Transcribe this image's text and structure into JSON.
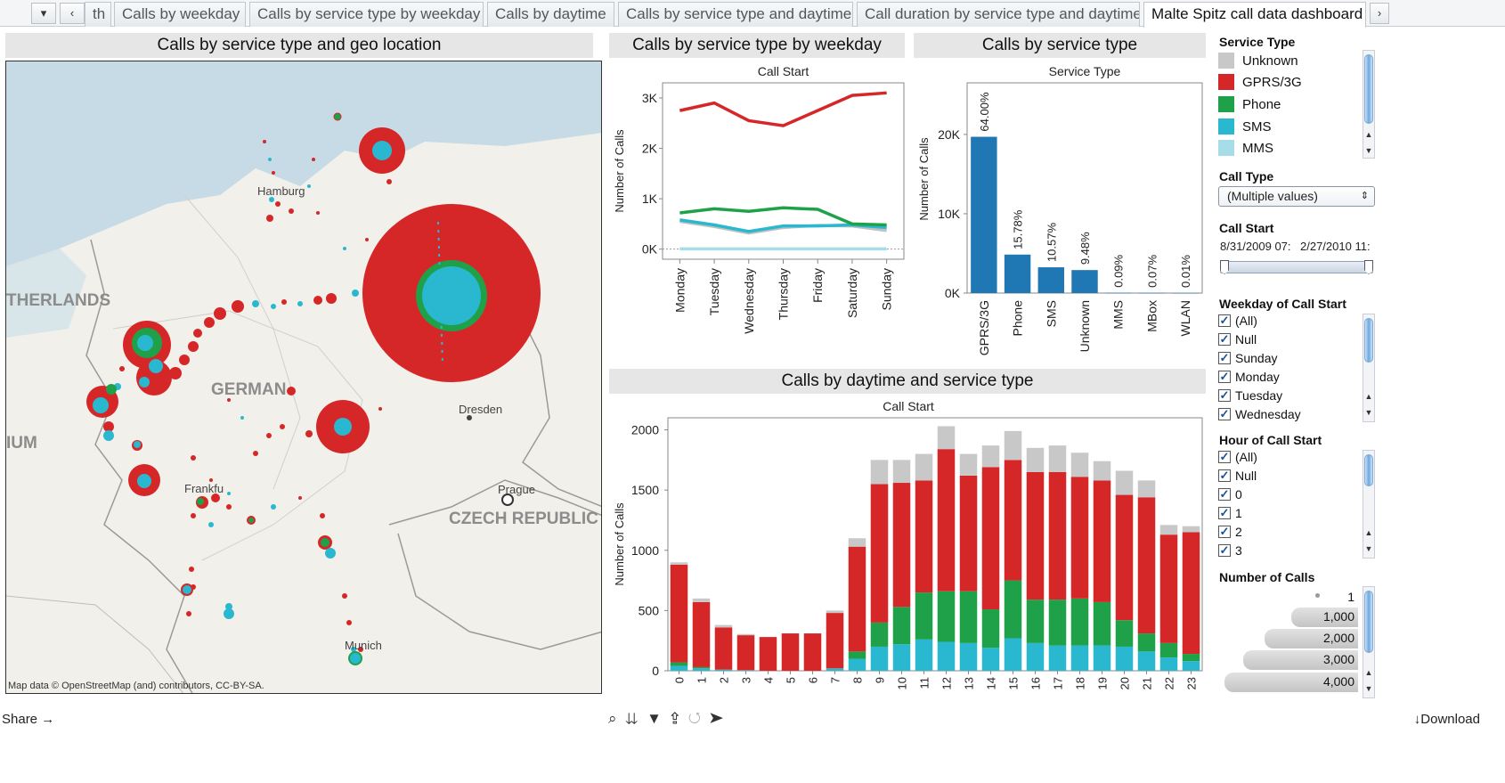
{
  "tabs": {
    "dropdown_icon": "chevron-down-icon",
    "back_icon": "chevron-left-icon",
    "items": [
      {
        "label": "th"
      },
      {
        "label": "Calls by weekday"
      },
      {
        "label": "Calls by service type by weekday"
      },
      {
        "label": "Calls by daytime"
      },
      {
        "label": "Calls by service type and daytime"
      },
      {
        "label": "Call duration by service type and daytime"
      },
      {
        "label": "Malte Spitz call data dashboard"
      }
    ],
    "active_index": 6
  },
  "map_panel": {
    "title": "Calls by service type and geo location",
    "labels": {
      "netherlands": "THERLANDS",
      "belgium": "IUM",
      "germany": "GERMAN",
      "czech": "CZECH REPUBLIC",
      "hamburg": "Hamburg",
      "dresden": "Dresden",
      "prague": "Prague",
      "frankfurt": "Frankfu",
      "munich": "Munich"
    },
    "attribution": "Map data © OpenStreetMap (and) contributors, CC-BY-SA."
  },
  "weekday_panel": {
    "title": "Calls by service type by weekday",
    "chart_title": "Call Start",
    "ylabel": "Number of Calls"
  },
  "service_panel": {
    "title": "Calls by service type",
    "chart_title": "Service Type",
    "ylabel": "Number of Calls"
  },
  "daytime_panel": {
    "title": "Calls by daytime and service type",
    "chart_title": "Call Start",
    "ylabel": "Number of Calls"
  },
  "colors": {
    "unknown": "#c8c8c8",
    "gprs": "#d62728",
    "phone": "#1fa14a",
    "sms": "#29b8d0",
    "mms": "#a6dde8",
    "bar_blue": "#1f77b4"
  },
  "chart_data": [
    {
      "type": "line",
      "title": "Call Start",
      "xlabel": "",
      "ylabel": "Number of Calls",
      "categories": [
        "Monday",
        "Tuesday",
        "Wednesday",
        "Thursday",
        "Friday",
        "Saturday",
        "Sunday"
      ],
      "yticks": [
        "0K",
        "1K",
        "2K",
        "3K"
      ],
      "ylim": [
        -200,
        3300
      ],
      "series": [
        {
          "name": "GPRS/3G",
          "color": "#d62728",
          "values": [
            2750,
            2900,
            2550,
            2450,
            2750,
            3050,
            3100
          ]
        },
        {
          "name": "Phone",
          "color": "#1fa14a",
          "values": [
            720,
            800,
            750,
            820,
            790,
            500,
            480
          ]
        },
        {
          "name": "SMS",
          "color": "#29b8d0",
          "values": [
            580,
            480,
            350,
            460,
            460,
            480,
            430
          ]
        },
        {
          "name": "Unknown",
          "color": "#c0c0c0",
          "values": [
            550,
            450,
            320,
            430,
            470,
            460,
            370
          ]
        },
        {
          "name": "MMS",
          "color": "#a6dde8",
          "values": [
            5,
            5,
            5,
            5,
            5,
            5,
            5
          ]
        }
      ]
    },
    {
      "type": "bar",
      "title": "Service Type",
      "xlabel": "",
      "ylabel": "Number of Calls",
      "categories": [
        "GPRS/3G",
        "Phone",
        "SMS",
        "Unknown",
        "MMS",
        "MBox",
        "WLAN"
      ],
      "values": [
        19700,
        4850,
        3250,
        2900,
        27,
        21,
        3
      ],
      "labels": [
        "64.00%",
        "15.78%",
        "10.57%",
        "9.48%",
        "0.09%",
        "0.07%",
        "0.01%"
      ],
      "yticks": [
        "0K",
        "10K",
        "20K"
      ],
      "ylim": [
        0,
        26500
      ]
    },
    {
      "type": "bar",
      "title": "Call Start",
      "xlabel": "",
      "ylabel": "Number of Calls",
      "categories": [
        "0",
        "1",
        "2",
        "3",
        "4",
        "5",
        "6",
        "7",
        "8",
        "9",
        "10",
        "11",
        "12",
        "13",
        "14",
        "15",
        "16",
        "17",
        "18",
        "19",
        "20",
        "21",
        "22",
        "23"
      ],
      "yticks": [
        "0",
        "500",
        "1000",
        "1500",
        "2000"
      ],
      "ylim": [
        0,
        2100
      ],
      "stacked": true,
      "series": [
        {
          "name": "SMS",
          "color": "#29b8d0",
          "values": [
            40,
            20,
            10,
            5,
            0,
            0,
            0,
            20,
            100,
            200,
            220,
            260,
            240,
            230,
            190,
            270,
            230,
            210,
            210,
            210,
            200,
            160,
            110,
            80
          ]
        },
        {
          "name": "Phone",
          "color": "#1fa14a",
          "values": [
            30,
            10,
            0,
            0,
            0,
            0,
            0,
            0,
            60,
            200,
            310,
            390,
            420,
            430,
            320,
            480,
            360,
            380,
            390,
            360,
            220,
            150,
            120,
            60
          ]
        },
        {
          "name": "GPRS/3G",
          "color": "#d62728",
          "values": [
            810,
            540,
            350,
            290,
            280,
            310,
            310,
            460,
            870,
            1150,
            1030,
            930,
            1180,
            960,
            1180,
            1000,
            1060,
            1060,
            1010,
            1010,
            1040,
            1130,
            900,
            1010
          ]
        },
        {
          "name": "Unknown",
          "color": "#c8c8c8",
          "values": [
            20,
            30,
            20,
            10,
            0,
            0,
            0,
            20,
            70,
            200,
            190,
            220,
            190,
            180,
            180,
            240,
            200,
            220,
            200,
            160,
            200,
            140,
            80,
            50
          ]
        }
      ]
    }
  ],
  "sidebar": {
    "service_type": {
      "title": "Service Type",
      "items": [
        {
          "label": "Unknown",
          "color": "#c8c8c8"
        },
        {
          "label": "GPRS/3G",
          "color": "#d62728"
        },
        {
          "label": "Phone",
          "color": "#1fa14a"
        },
        {
          "label": "SMS",
          "color": "#29b8d0"
        },
        {
          "label": "MMS",
          "color": "#a6dde8"
        }
      ]
    },
    "call_type": {
      "title": "Call Type",
      "value": "(Multiple values)"
    },
    "call_start": {
      "title": "Call Start",
      "from": "8/31/2009 07:",
      "to": "2/27/2010 11:"
    },
    "weekday": {
      "title": "Weekday of Call Start",
      "items": [
        {
          "label": "(All)",
          "checked": true
        },
        {
          "label": "Null",
          "checked": true
        },
        {
          "label": "Sunday",
          "checked": true
        },
        {
          "label": "Monday",
          "checked": true
        },
        {
          "label": "Tuesday",
          "checked": true
        },
        {
          "label": "Wednesday",
          "checked": true
        }
      ]
    },
    "hour": {
      "title": "Hour of Call Start",
      "items": [
        {
          "label": "(All)",
          "checked": true
        },
        {
          "label": "Null",
          "checked": true
        },
        {
          "label": "0",
          "checked": true
        },
        {
          "label": "1",
          "checked": true
        },
        {
          "label": "2",
          "checked": true
        },
        {
          "label": "3",
          "checked": true
        }
      ]
    },
    "num_calls": {
      "title": "Number of Calls",
      "items": [
        {
          "label": "1",
          "size": 0.02
        },
        {
          "label": "1,000",
          "size": 0.5
        },
        {
          "label": "2,000",
          "size": 0.7
        },
        {
          "label": "3,000",
          "size": 0.86
        },
        {
          "label": "4,000",
          "size": 1.0
        }
      ]
    }
  },
  "footer": {
    "share": "Share",
    "download": "Download"
  }
}
